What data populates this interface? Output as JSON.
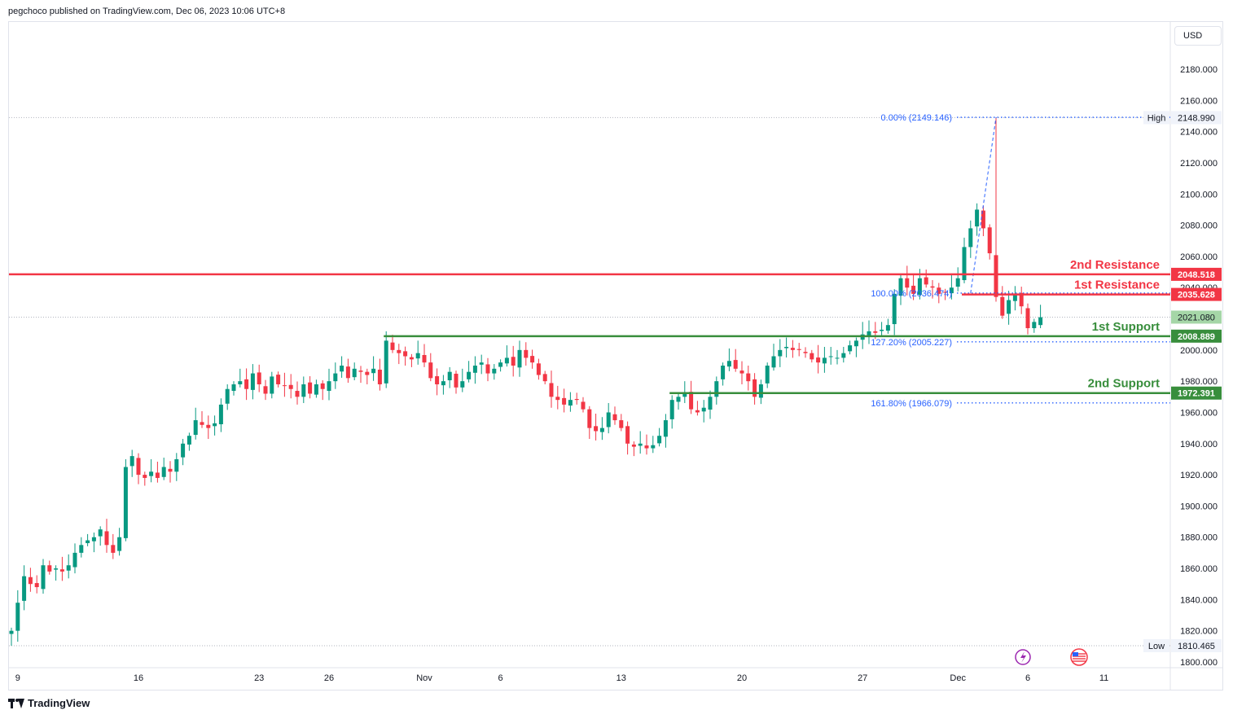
{
  "header": {
    "published": "pegchoco published on TradingView.com, Dec 06, 2023 10:06 UTC+8"
  },
  "footer": {
    "brand": "TradingView"
  },
  "currency": "USD",
  "colors": {
    "up": "#089981",
    "down": "#f23645",
    "resistance": "#f23645",
    "support": "#388e3c",
    "fib": "#2962ff"
  },
  "chart_data": {
    "type": "candlestick",
    "y_axis": {
      "ylim": [
        1795,
        2200
      ],
      "ticks": [
        "1800.000",
        "1820.000",
        "1840.000",
        "1860.000",
        "1880.000",
        "1900.000",
        "1920.000",
        "1940.000",
        "1960.000",
        "1980.000",
        "2000.000",
        "2020.000",
        "2040.000",
        "2060.000",
        "2080.000",
        "2100.000",
        "2120.000",
        "2140.000",
        "2160.000",
        "2180.000"
      ]
    },
    "x_axis": {
      "ticks": [
        {
          "label": "9",
          "index": 1
        },
        {
          "label": "16",
          "index": 20
        },
        {
          "label": "23",
          "index": 39
        },
        {
          "label": "26",
          "index": 50
        },
        {
          "label": "Nov",
          "index": 65
        },
        {
          "label": "6",
          "index": 77
        },
        {
          "label": "13",
          "index": 96
        },
        {
          "label": "20",
          "index": 115
        },
        {
          "label": "27",
          "index": 134
        },
        {
          "label": "Dec",
          "index": 149
        },
        {
          "label": "6",
          "index": 160
        },
        {
          "label": "11",
          "index": 172
        }
      ],
      "total_slots": 186
    },
    "closes": [
      1820,
      1838,
      1855,
      1850,
      1848,
      1862,
      1858,
      1860,
      1858,
      1862,
      1870,
      1875,
      1878,
      1880,
      1885,
      1875,
      1870,
      1880,
      1925,
      1932,
      1920,
      1918,
      1922,
      1918,
      1925,
      1922,
      1930,
      1940,
      1945,
      1955,
      1952,
      1950,
      1953,
      1965,
      1975,
      1978,
      1980,
      1975,
      1985,
      1978,
      1972,
      1983,
      1978,
      1977,
      1975,
      1970,
      1978,
      1972,
      1978,
      1975,
      1980,
      1985,
      1990,
      1982,
      1988,
      1986,
      1984,
      1988,
      1978,
      2006,
      2000,
      1998,
      1996,
      1994,
      1998,
      1992,
      1982,
      1978,
      1980,
      1986,
      1976,
      1980,
      1986,
      1990,
      1992,
      1985,
      1988,
      1992,
      1995,
      1990,
      2000,
      1995,
      1992,
      1984,
      1980,
      1970,
      1968,
      1965,
      1968,
      1968,
      1962,
      1950,
      1948,
      1950,
      1960,
      1955,
      1950,
      1940,
      1938,
      1940,
      1937,
      1939,
      1945,
      1955,
      1968,
      1970,
      1972,
      1962,
      1960,
      1963,
      1970,
      1980,
      1990,
      1993,
      1988,
      1985,
      1980,
      1970,
      1978,
      1990,
      1996,
      2000,
      2002,
      2000,
      2000,
      1998,
      1994,
      1992,
      1995,
      1996,
      1995,
      1998,
      2003,
      2006,
      2010,
      2012,
      2011,
      2013,
      2016,
      2036,
      2046,
      2040,
      2036,
      2046,
      2042,
      2040,
      2036,
      2037,
      2040,
      2046,
      2066,
      2078,
      2090,
      2078,
      2062,
      2034,
      2022,
      2032,
      2036,
      2028,
      2014,
      2018,
      2021
    ],
    "high": [
      2149.146,
      2148.99
    ],
    "low": 1810.465,
    "levels": [
      {
        "name": "2nd Resistance",
        "value": 2048.518,
        "label": "2048.518",
        "color": "resistance",
        "start_index": 0
      },
      {
        "name": "1st Resistance",
        "value": 2035.628,
        "label": "2035.628",
        "color": "resistance",
        "start_index": 150
      },
      {
        "name": "1st Support",
        "value": 2008.889,
        "label": "2008.889",
        "color": "support",
        "start_index": 59
      },
      {
        "name": "2nd Support",
        "value": 1972.391,
        "label": "1972.391",
        "color": "support",
        "start_index": 104
      }
    ],
    "last_price": {
      "value": 2021.08,
      "label": "2021.080"
    },
    "fibonacci": [
      {
        "label": "0.00% (2149.146)",
        "value": 2149.146
      },
      {
        "label": "100.00% (2036.474)",
        "value": 2036.474
      },
      {
        "label": "127.20% (2005.227)",
        "value": 2005.227
      },
      {
        "label": "161.80% (1966.079)",
        "value": 1966.079
      }
    ],
    "extremes": [
      {
        "tag": "High",
        "label": "2148.990",
        "value": 2148.99
      },
      {
        "tag": "Low",
        "label": "1810.465",
        "value": 1810.465
      }
    ]
  }
}
